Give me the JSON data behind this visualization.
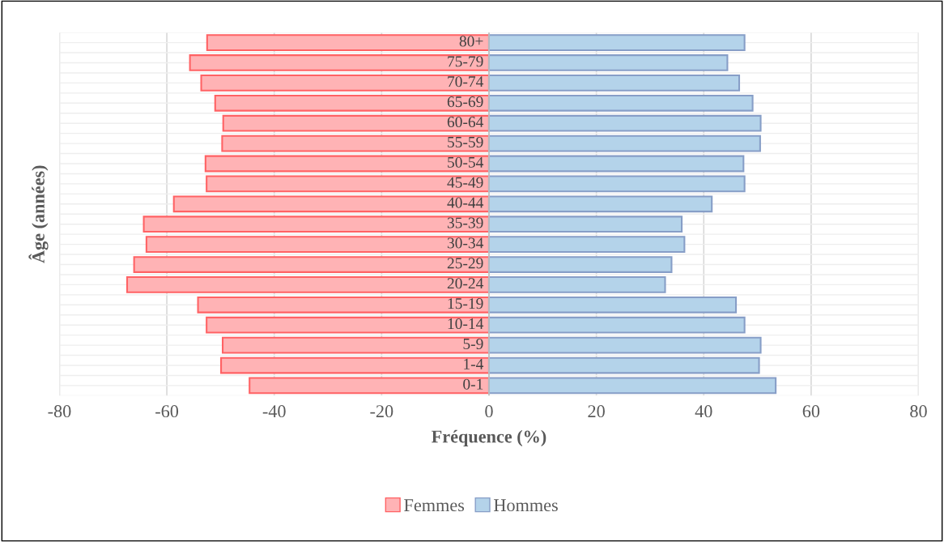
{
  "chart_data": {
    "type": "bar",
    "orientation": "horizontal",
    "xlabel": "Fréquence (%)",
    "ylabel": "Âge (années)",
    "categories": [
      "80+",
      "75-79",
      "70-74",
      "65-69",
      "60-64",
      "55-59",
      "50-54",
      "45-49",
      "40-44",
      "35-39",
      "30-34",
      "25-29",
      "20-24",
      "15-19",
      "10-14",
      "5-9",
      "1-4",
      "0-1"
    ],
    "series": [
      {
        "name": "Femmes",
        "color": "#ffb3b5",
        "values": [
          -52.5,
          -55.7,
          -53.6,
          -51.0,
          -49.5,
          -49.7,
          -52.8,
          -52.6,
          -58.7,
          -64.3,
          -63.8,
          -66.1,
          -67.4,
          -54.2,
          -52.6,
          -49.6,
          -49.9,
          -44.6
        ]
      },
      {
        "name": "Hommes",
        "color": "#b4d3ea",
        "values": [
          47.6,
          44.4,
          46.6,
          49.1,
          50.6,
          50.5,
          47.4,
          47.6,
          41.5,
          35.9,
          36.4,
          34.0,
          32.8,
          46.0,
          47.6,
          50.6,
          50.3,
          53.4
        ]
      }
    ],
    "xlim": [
      -80,
      80
    ],
    "xticks": [
      -80,
      -60,
      -40,
      -20,
      0,
      20,
      40,
      60,
      80
    ],
    "stacked": true,
    "grid": true,
    "legend": "bottom"
  }
}
